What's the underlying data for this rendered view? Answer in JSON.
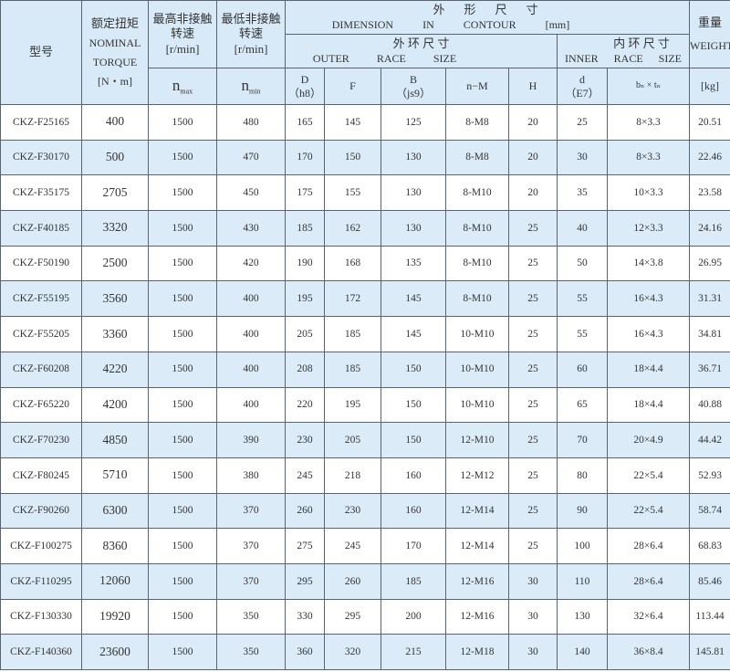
{
  "header": {
    "model": "型号",
    "torque_cn": "额定扭矩",
    "torque_en1": "NOMINAL",
    "torque_en2": "TORQUE",
    "torque_unit": "[N・m]",
    "nmax_cn1": "最高非接触",
    "nmax_cn2": "转速",
    "nmax_unit": "[r/min]",
    "nmax_sym": "n",
    "nmax_sub": "max",
    "nmin_cn1": "最低非接触",
    "nmin_cn2": "转速",
    "nmin_unit": "[r/min]",
    "nmin_sym": "n",
    "nmin_sub": "min",
    "dim_cn": "外　形　尺　寸",
    "dim_en": [
      "DIMENSION",
      "IN",
      "CONTOUR",
      "[mm]"
    ],
    "outer_cn": "外 环 尺 寸",
    "outer_en": [
      "OUTER",
      "RACE",
      "SIZE"
    ],
    "inner_cn": "内 环 尺 寸",
    "inner_en": [
      "INNER",
      "RACE",
      "SIZE"
    ],
    "weight_cn": "重量",
    "weight_en": "WEIGHT",
    "weight_unit": "[kg]",
    "D": "D",
    "D_tol": "（h8）",
    "F": "F",
    "B": "B",
    "B_tol": "（js9）",
    "nM": "n−M",
    "H": "H",
    "d": "d",
    "d_tol": "（E7）",
    "bt": "bₙ × tₙ"
  },
  "rows": [
    [
      "CKZ-F25165",
      "400",
      "1500",
      "480",
      "165",
      "145",
      "125",
      "8-M8",
      "20",
      "25",
      "8×3.3",
      "20.51"
    ],
    [
      "CKZ-F30170",
      "500",
      "1500",
      "470",
      "170",
      "150",
      "130",
      "8-M8",
      "20",
      "30",
      "8×3.3",
      "22.46"
    ],
    [
      "CKZ-F35175",
      "2705",
      "1500",
      "450",
      "175",
      "155",
      "130",
      "8-M10",
      "20",
      "35",
      "10×3.3",
      "23.58"
    ],
    [
      "CKZ-F40185",
      "3320",
      "1500",
      "430",
      "185",
      "162",
      "130",
      "8-M10",
      "25",
      "40",
      "12×3.3",
      "24.16"
    ],
    [
      "CKZ-F50190",
      "2500",
      "1500",
      "420",
      "190",
      "168",
      "135",
      "8-M10",
      "25",
      "50",
      "14×3.8",
      "26.95"
    ],
    [
      "CKZ-F55195",
      "3560",
      "1500",
      "400",
      "195",
      "172",
      "145",
      "8-M10",
      "25",
      "55",
      "16×4.3",
      "31.31"
    ],
    [
      "CKZ-F55205",
      "3360",
      "1500",
      "400",
      "205",
      "185",
      "145",
      "10-M10",
      "25",
      "55",
      "16×4.3",
      "34.81"
    ],
    [
      "CKZ-F60208",
      "4220",
      "1500",
      "400",
      "208",
      "185",
      "150",
      "10-M10",
      "25",
      "60",
      "18×4.4",
      "36.71"
    ],
    [
      "CKZ-F65220",
      "4200",
      "1500",
      "400",
      "220",
      "195",
      "150",
      "10-M10",
      "25",
      "65",
      "18×4.4",
      "40.88"
    ],
    [
      "CKZ-F70230",
      "4850",
      "1500",
      "390",
      "230",
      "205",
      "150",
      "12-M10",
      "25",
      "70",
      "20×4.9",
      "44.42"
    ],
    [
      "CKZ-F80245",
      "5710",
      "1500",
      "380",
      "245",
      "218",
      "160",
      "12-M12",
      "25",
      "80",
      "22×5.4",
      "52.93"
    ],
    [
      "CKZ-F90260",
      "6300",
      "1500",
      "370",
      "260",
      "230",
      "160",
      "12-M14",
      "25",
      "90",
      "22×5.4",
      "58.74"
    ],
    [
      "CKZ-F100275",
      "8360",
      "1500",
      "370",
      "275",
      "245",
      "170",
      "12-M14",
      "25",
      "100",
      "28×6.4",
      "68.83"
    ],
    [
      "CKZ-F110295",
      "12060",
      "1500",
      "370",
      "295",
      "260",
      "185",
      "12-M16",
      "30",
      "110",
      "28×6.4",
      "85.46"
    ],
    [
      "CKZ-F130330",
      "19920",
      "1500",
      "350",
      "330",
      "295",
      "200",
      "12-M16",
      "30",
      "130",
      "32×6.4",
      "113.44"
    ],
    [
      "CKZ-F140360",
      "23600",
      "1500",
      "350",
      "360",
      "320",
      "215",
      "12-M18",
      "30",
      "140",
      "36×8.4",
      "145.81"
    ]
  ],
  "colors": {
    "header_bg": "#d8eaf7",
    "alt_row_bg": "#dbecf8",
    "border": "#5a6470"
  }
}
